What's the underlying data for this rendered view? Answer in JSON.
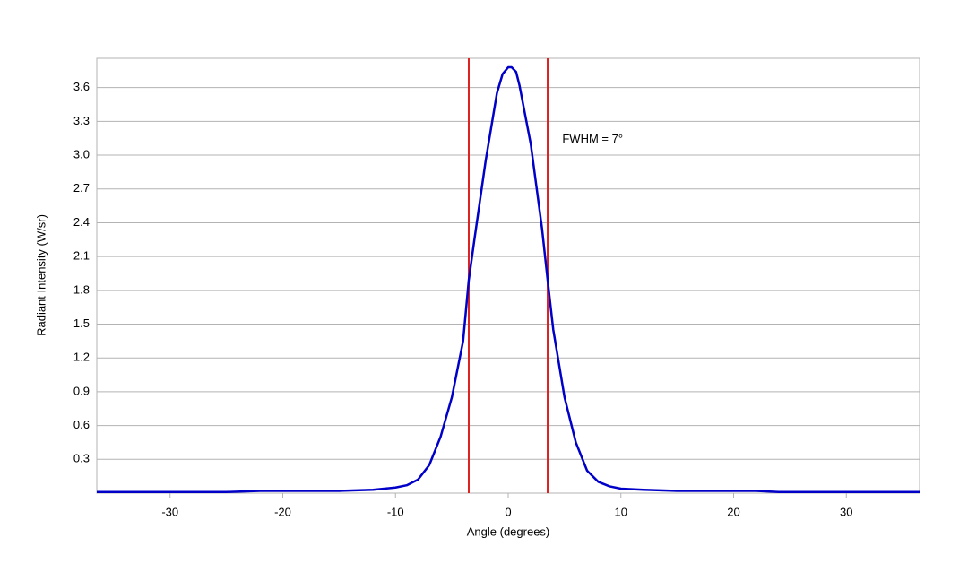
{
  "chart_data": {
    "type": "line",
    "x_label": "Angle (degrees)",
    "y_label": "Radiant Intensity (W/sr)",
    "xlim": [
      -36.5,
      36.5
    ],
    "ylim": [
      0,
      3.86
    ],
    "xticks": [
      -30,
      -20,
      -10,
      0,
      10,
      20,
      30
    ],
    "yticks": [
      0.3,
      0.6,
      0.9,
      1.2,
      1.5,
      1.8,
      2.1,
      2.4,
      2.7,
      {
        "value": 3,
        "label": "3.0"
      },
      3.3,
      3.6
    ],
    "grid": true,
    "series": [
      {
        "name": "Radiant Intensity",
        "color": "#0000c8",
        "x": [
          -36.5,
          -30,
          -25,
          -22,
          -20,
          -15,
          -12,
          -10,
          -9,
          -8,
          -7,
          -6,
          -5,
          -4,
          -3.5,
          -3,
          -2,
          -1,
          -0.5,
          0,
          0.3,
          0.7,
          1,
          2,
          3,
          3.5,
          4,
          5,
          6,
          7,
          8,
          9,
          10,
          12,
          15,
          20,
          22,
          24,
          30,
          36.5
        ],
        "values": [
          0.01,
          0.01,
          0.01,
          0.02,
          0.02,
          0.02,
          0.03,
          0.05,
          0.07,
          0.12,
          0.25,
          0.5,
          0.85,
          1.35,
          1.89,
          2.25,
          2.95,
          3.55,
          3.72,
          3.78,
          3.78,
          3.74,
          3.62,
          3.1,
          2.35,
          1.89,
          1.45,
          0.85,
          0.45,
          0.2,
          0.1,
          0.06,
          0.04,
          0.03,
          0.02,
          0.02,
          0.02,
          0.01,
          0.01,
          0.01
        ]
      }
    ],
    "vlines": [
      {
        "x": -3.5,
        "color": "#dd2222"
      },
      {
        "x": 3.5,
        "color": "#dd2222"
      }
    ],
    "annotations": [
      {
        "text": "FWHM = 7°",
        "x": 4.8,
        "y": 3.14
      }
    ]
  }
}
